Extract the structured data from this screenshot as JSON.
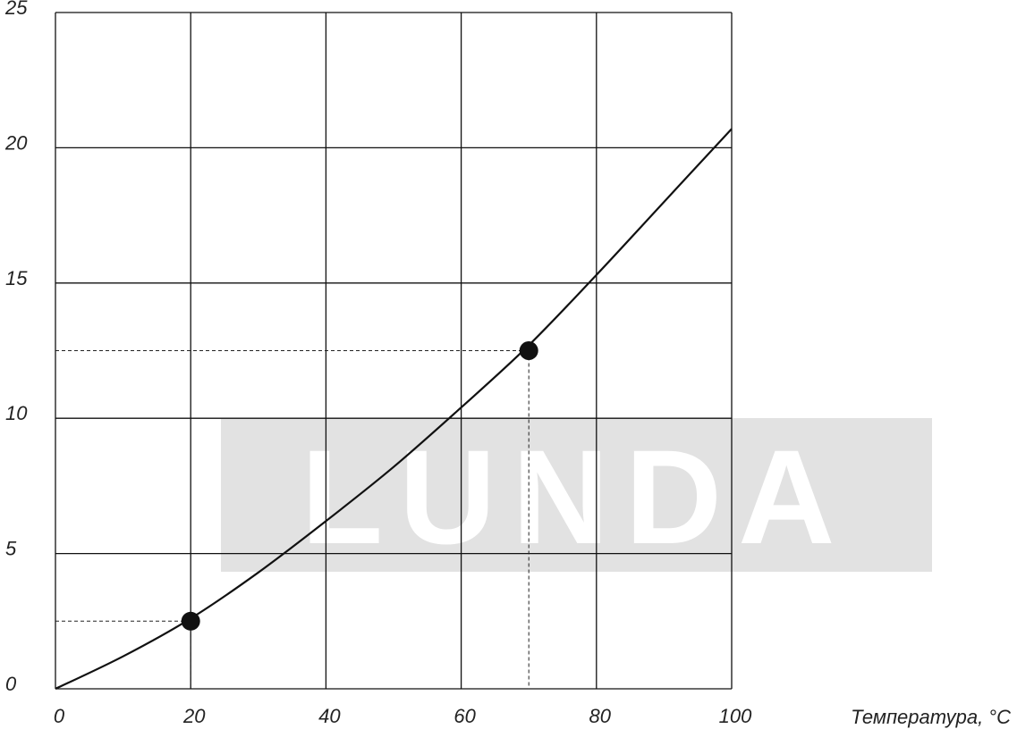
{
  "chart_data": {
    "type": "line",
    "title": "",
    "xlabel": "Температура, °C",
    "ylabel": "",
    "xlim": [
      0,
      100
    ],
    "ylim": [
      0,
      25
    ],
    "x_ticks": [
      0,
      20,
      40,
      60,
      80,
      100
    ],
    "y_ticks": [
      0,
      5,
      10,
      15,
      20,
      25
    ],
    "x_tick_labels": [
      "0",
      "20",
      "40",
      "60",
      "80",
      "100"
    ],
    "y_tick_labels": [
      "0",
      "5",
      "10",
      "15",
      "20",
      "25"
    ],
    "grid": true,
    "series": [
      {
        "x": [
          0,
          10,
          20,
          30,
          40,
          50,
          60,
          70,
          80,
          90,
          100
        ],
        "y": [
          0,
          1.2,
          2.6,
          4.3,
          6.2,
          8.2,
          10.4,
          12.7,
          15.3,
          18.0,
          20.7
        ]
      }
    ],
    "highlight_points": [
      {
        "x": 20,
        "y": 2.5
      },
      {
        "x": 70,
        "y": 12.5
      }
    ]
  },
  "watermark": {
    "text": "LUNDA",
    "color": "#e2e2e2"
  },
  "colors": {
    "line": "#111111",
    "grid": "#111111",
    "point": "#111111"
  }
}
